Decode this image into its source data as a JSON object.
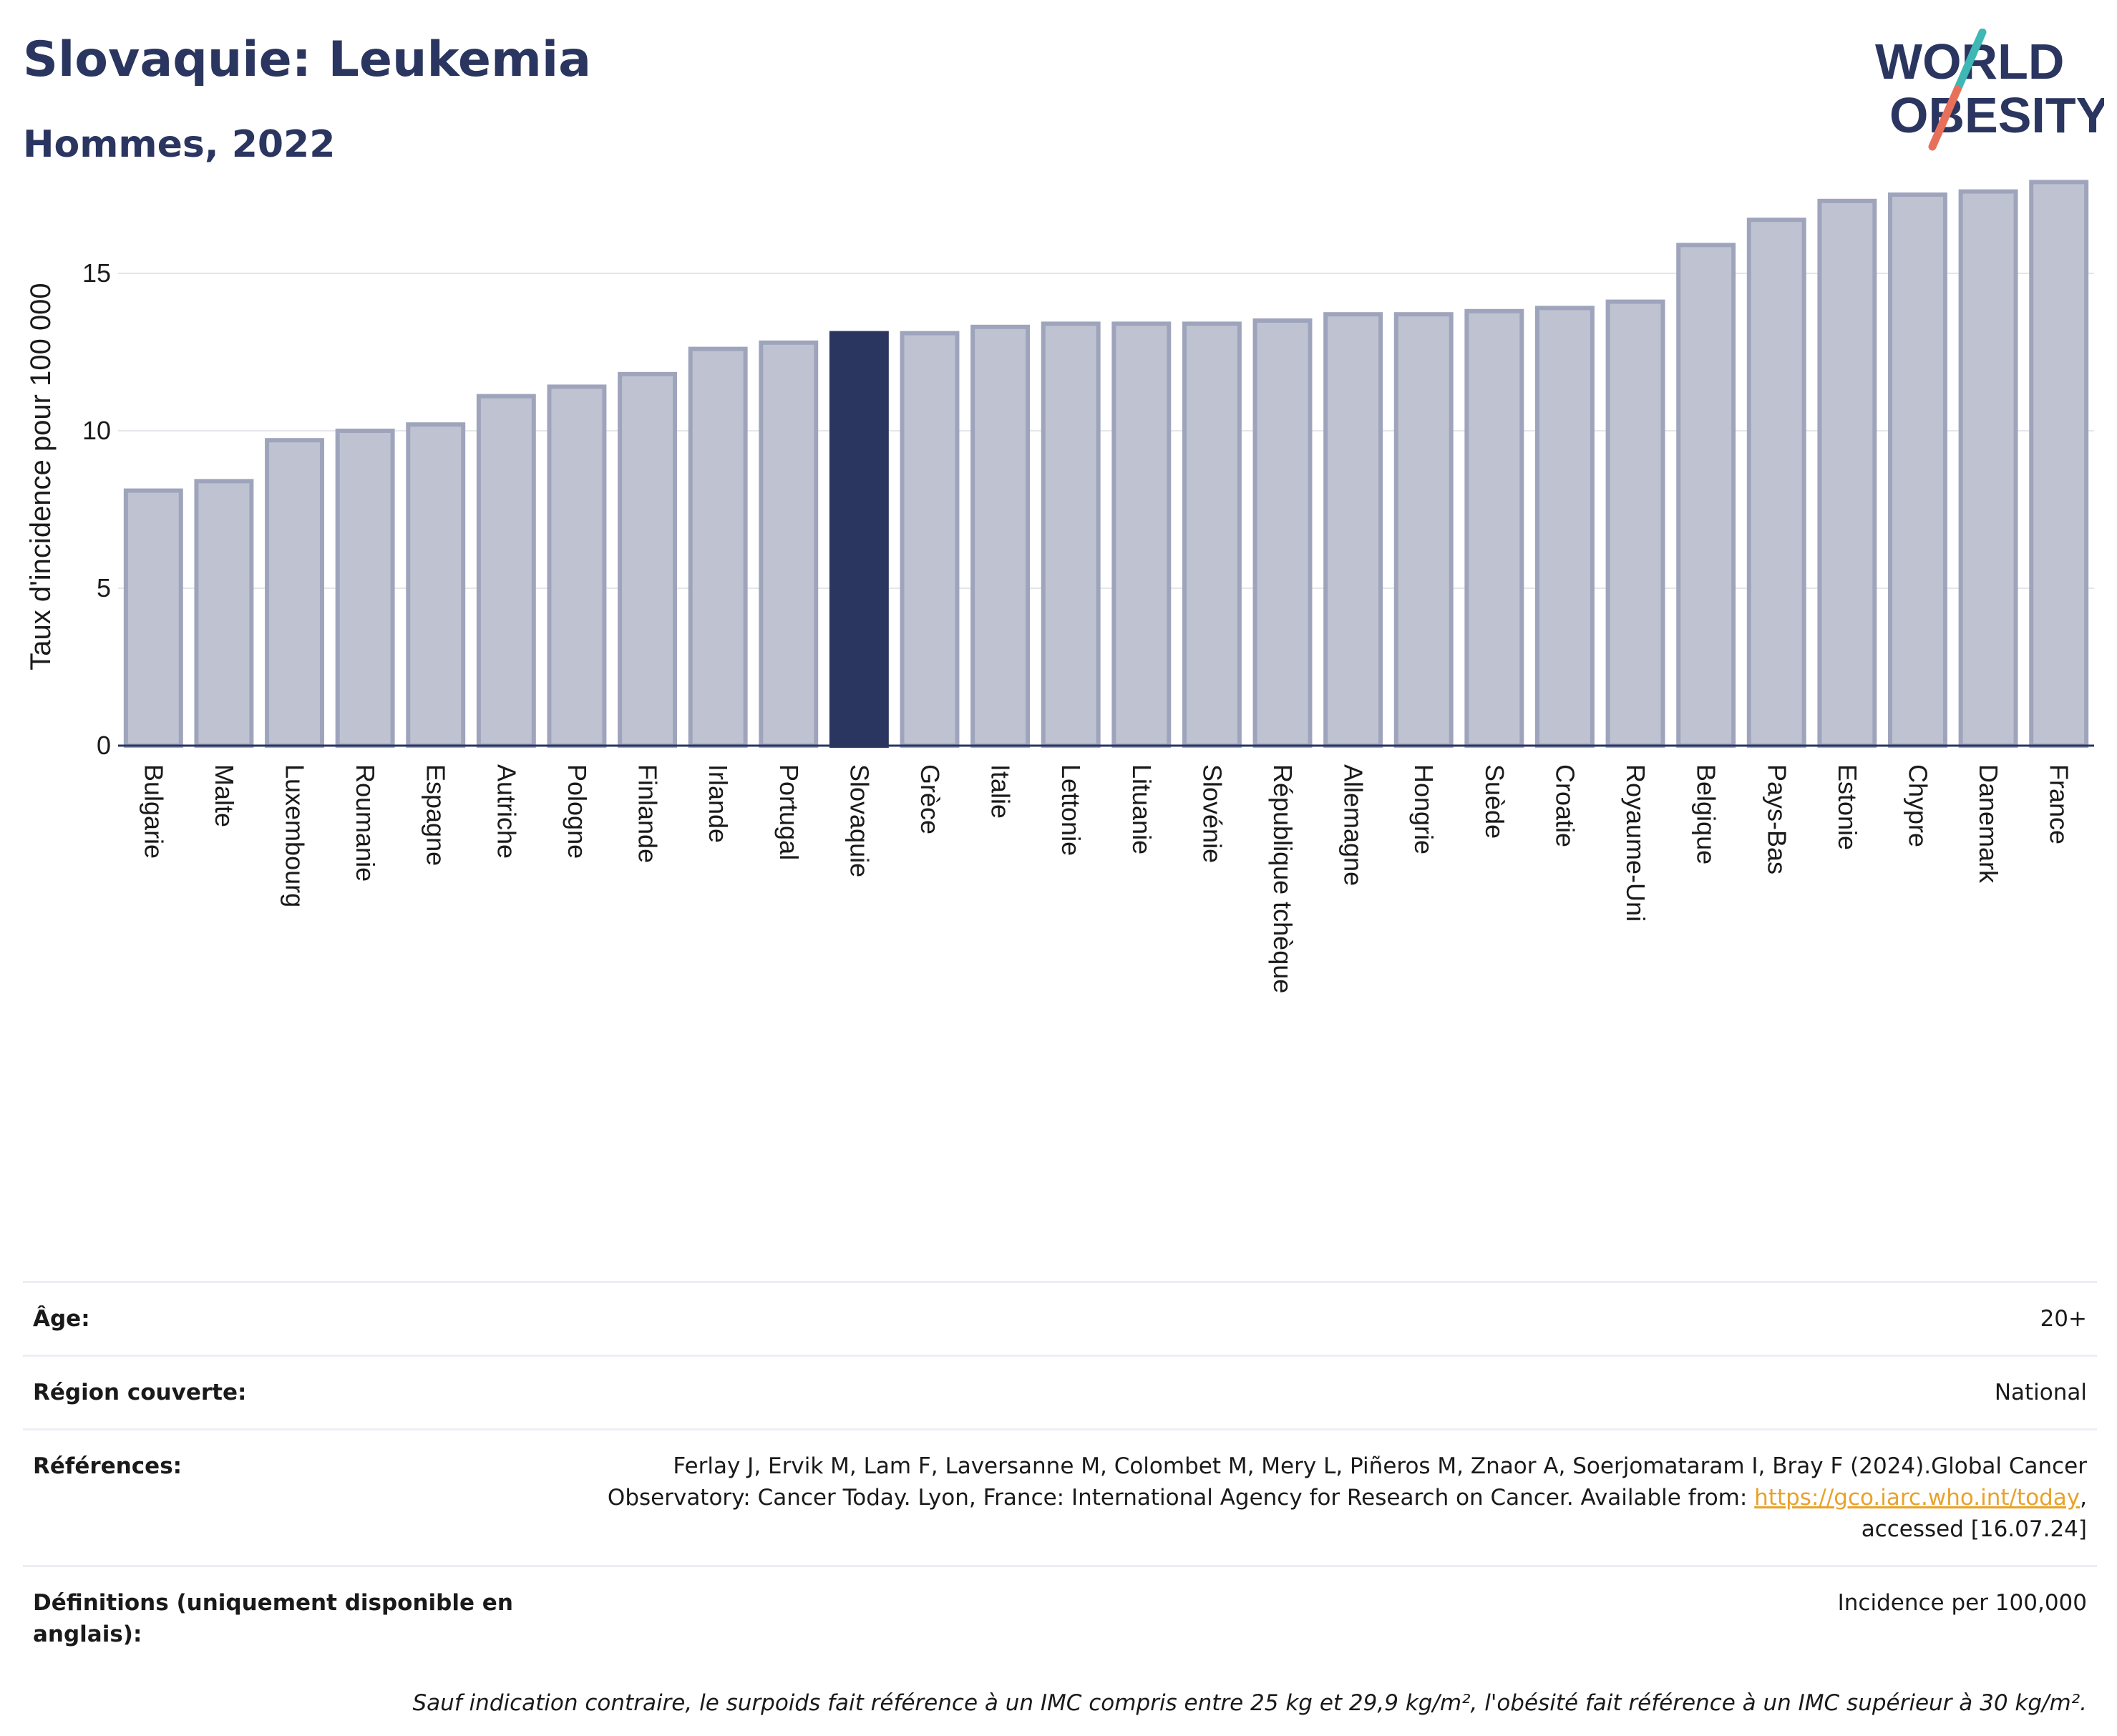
{
  "header": {
    "title": "Slovaquie: Leukemia",
    "subtitle": "Hommes, 2022"
  },
  "logo": {
    "line1": "WORLD",
    "line2": "OBESITY",
    "colors": {
      "text": "#2a3560",
      "slash_top": "#3fb7b5",
      "slash_bottom": "#e8705a"
    }
  },
  "colors": {
    "bar": "#bfc3d1",
    "bar_border": "#9ea4bb",
    "highlight": "#2a3560",
    "grid": "#e4e6ec",
    "axis": "#2a3560"
  },
  "chart_data": {
    "type": "bar",
    "ylabel": "Taux d'incidence pour 100 000",
    "ylim": [
      0,
      18
    ],
    "yticks": [
      0,
      5,
      10,
      15
    ],
    "grid": true,
    "highlight": "Slovaquie",
    "categories": [
      "Bulgarie",
      "Malte",
      "Luxembourg",
      "Roumanie",
      "Espagne",
      "Autriche",
      "Pologne",
      "Finlande",
      "Irlande",
      "Portugal",
      "Slovaquie",
      "Grèce",
      "Italie",
      "Lettonie",
      "Lituanie",
      "Slovénie",
      "République tchèque",
      "Allemagne",
      "Hongrie",
      "Suède",
      "Croatie",
      "Royaume-Uni",
      "Belgique",
      "Pays-Bas",
      "Estonie",
      "Chypre",
      "Danemark",
      "France"
    ],
    "values": [
      8.1,
      8.4,
      9.7,
      10.0,
      10.2,
      11.1,
      11.4,
      11.8,
      12.6,
      12.8,
      13.1,
      13.1,
      13.3,
      13.4,
      13.4,
      13.4,
      13.5,
      13.7,
      13.7,
      13.8,
      13.9,
      14.1,
      15.9,
      16.7,
      17.3,
      17.5,
      17.6,
      17.9
    ]
  },
  "meta": {
    "age_label": "Âge:",
    "age_value": "20+",
    "region_label": "Région couverte:",
    "region_value": "National",
    "references_label": "Références:",
    "references_text": "Ferlay J, Ervik M, Lam F, Laversanne M, Colombet M, Mery L, Piñeros M, Znaor A, Soerjomataram I, Bray F (2024).Global Cancer Observatory: Cancer Today. Lyon, France: International Agency for Research on Cancer. Available from: ",
    "references_link": "https://gco.iarc.who.int/today",
    "references_after": ", accessed [16.07.24]",
    "definitions_label": "Définitions (uniquement disponible en anglais):",
    "definitions_value": "Incidence per 100,000",
    "note": "Sauf indication contraire, le surpoids fait référence à un IMC compris entre 25 kg et 29,9 kg/m², l'obésité fait référence à un IMC supérieur à 30 kg/m²."
  }
}
